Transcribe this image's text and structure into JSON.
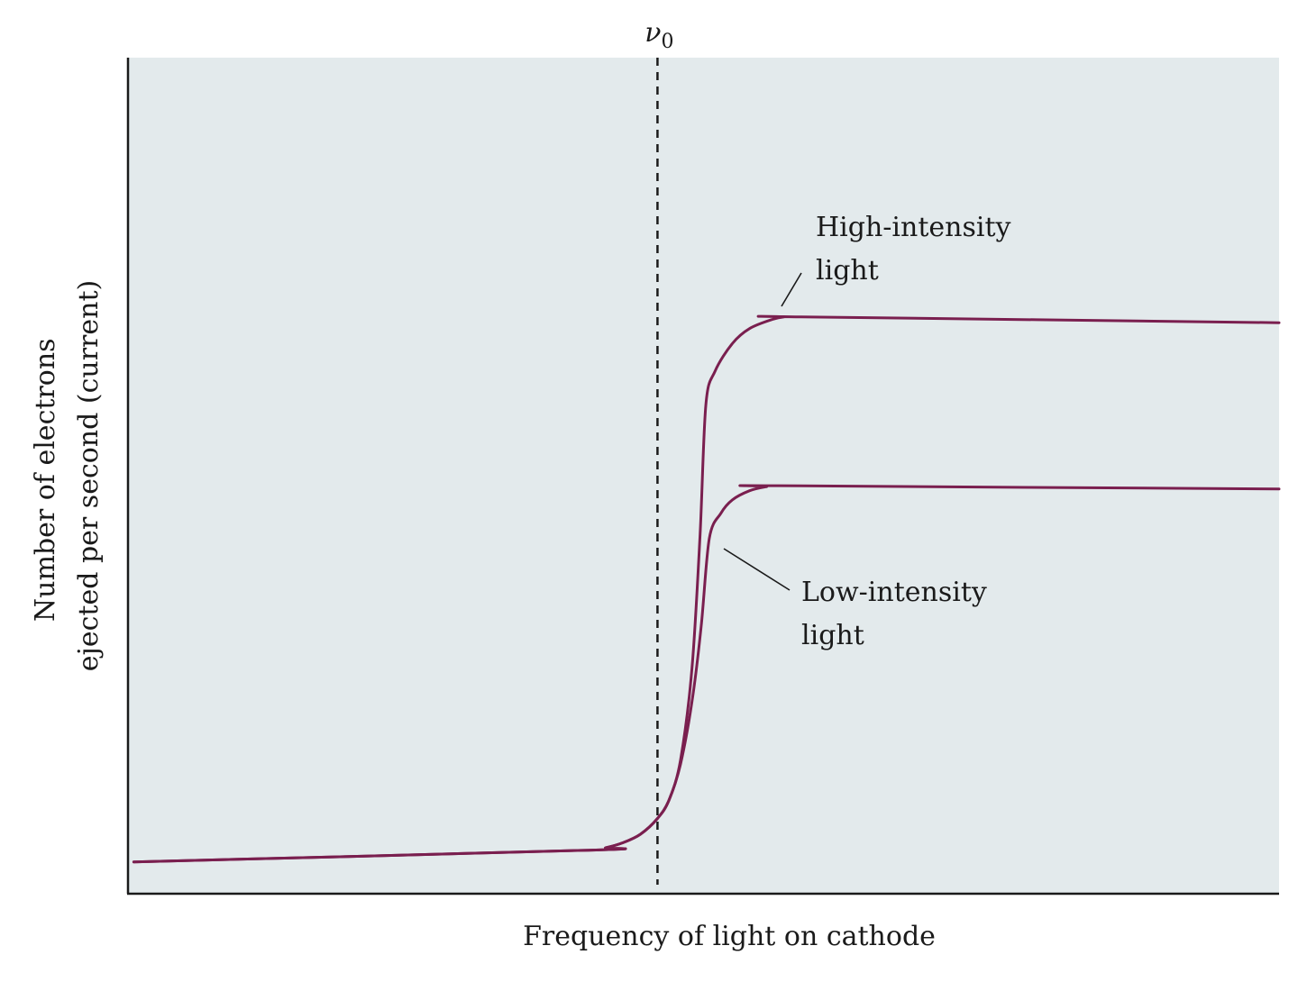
{
  "chart_data": {
    "type": "line",
    "title": "",
    "xlabel": "Frequency of light on cathode",
    "ylabel_lines": [
      "Number of electrons",
      "ejected per second (current)"
    ],
    "xlim": [
      0,
      100
    ],
    "ylim": [
      0,
      100
    ],
    "grid": false,
    "legend": "none",
    "threshold": {
      "symbol": "ν",
      "subscript": "0",
      "x": 46
    },
    "series": [
      {
        "name": "High-intensity light",
        "label_lines": [
          "High-intensity",
          "light"
        ],
        "color": "#7a1f4f",
        "x": [
          0.5,
          40,
          41.5,
          43,
          44.5,
          46,
          47,
          48,
          49,
          49.7,
          50.2,
          51,
          52.5,
          54,
          56,
          57,
          58,
          100
        ],
        "y": [
          3.8,
          5.2,
          5.5,
          6.1,
          7.1,
          9,
          11.2,
          16,
          27,
          43,
          58.5,
          62.5,
          65.8,
          67.6,
          68.7,
          69,
          69,
          68.3
        ]
      },
      {
        "name": "Low-intensity light",
        "label_lines": [
          "Low-intensity",
          "light"
        ],
        "color": "#7a1f4f",
        "x": [
          0.5,
          40,
          41.5,
          43,
          44.5,
          46,
          47,
          48,
          49,
          49.8,
          50.5,
          51.5,
          52.5,
          54,
          55.5,
          56.5,
          100
        ],
        "y": [
          3.8,
          5.2,
          5.5,
          6.1,
          7.1,
          9,
          11.2,
          15.5,
          23,
          32,
          42.5,
          45.5,
          47.1,
          48.2,
          48.7,
          48.8,
          48.4
        ]
      }
    ]
  }
}
